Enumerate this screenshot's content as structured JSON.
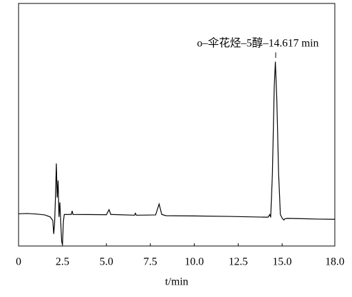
{
  "chart_data": {
    "type": "line",
    "annotation": "o–伞花烃–5醇–14.617 min",
    "x_label": "t/min",
    "color": "#000000",
    "xlim": [
      0,
      18
    ],
    "xticks": [
      0,
      2.5,
      {
        "value": 5,
        "label": "5.0"
      },
      7.5,
      {
        "value": 10,
        "label": "10.0"
      },
      12.5,
      {
        "value": 15,
        "label": "15.0"
      },
      {
        "value": 18,
        "label": "18.0"
      }
    ],
    "ylim": [
      0,
      100
    ],
    "x": [
      0,
      0.5,
      1.0,
      1.5,
      1.8,
      1.95,
      2.0,
      2.05,
      2.1,
      2.15,
      2.2,
      2.25,
      2.3,
      2.35,
      2.4,
      2.45,
      2.5,
      2.55,
      2.6,
      3.0,
      3.05,
      3.1,
      5.0,
      5.15,
      5.25,
      6.6,
      6.65,
      6.7,
      7.8,
      8.0,
      8.15,
      8.4,
      10,
      12,
      14,
      14.2,
      14.3,
      14.35,
      14.45,
      14.55,
      14.617,
      14.7,
      14.8,
      14.9,
      15.0,
      15.1,
      15.15,
      15.3,
      16,
      17,
      18
    ],
    "values": [
      13.3,
      13.4,
      13.2,
      12.8,
      12.0,
      10.5,
      5,
      9,
      20,
      34,
      20,
      27,
      12,
      18,
      10,
      2,
      0.5,
      10,
      13,
      13,
      14.5,
      13,
      12.9,
      15,
      13,
      12.7,
      13.5,
      12.7,
      12.8,
      17.3,
      13,
      12.5,
      12.4,
      12.2,
      11.9,
      11.9,
      13,
      11.8,
      30,
      65,
      76,
      60,
      30,
      13,
      11.5,
      10.7,
      11.2,
      11.4,
      11.3,
      11.1,
      11.0
    ]
  }
}
